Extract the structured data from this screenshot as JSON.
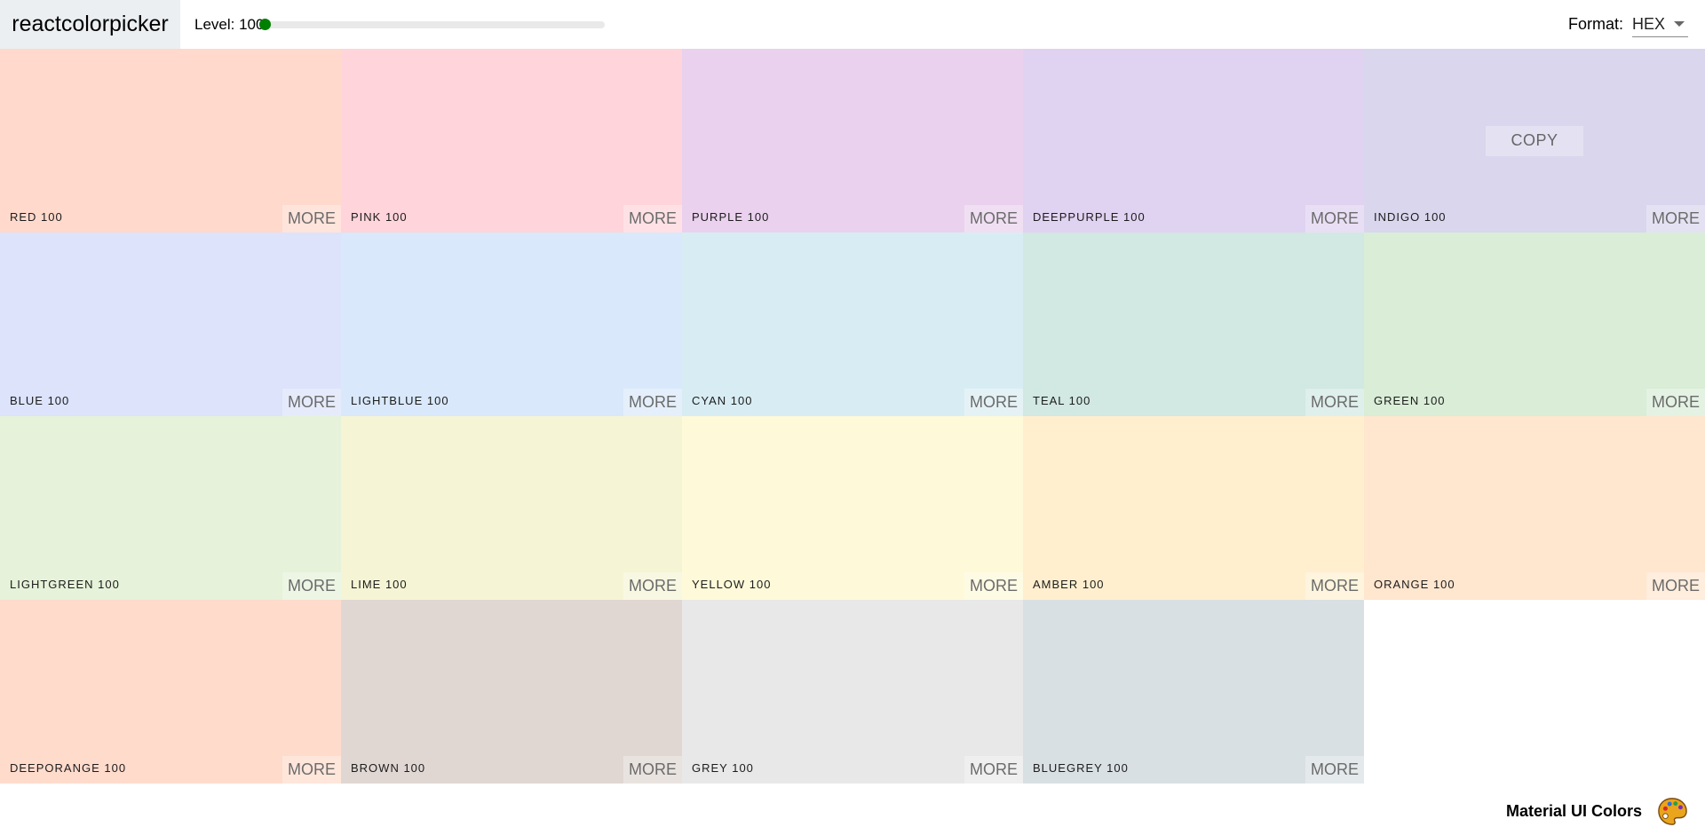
{
  "navbar": {
    "logo": "reactcolorpicker",
    "level_label": "Level: 100",
    "level_value": 100,
    "level_min": 100,
    "level_max": 900,
    "format_label": "Format:",
    "format_value": "HEX"
  },
  "palette": {
    "more_label": "MORE",
    "copy_label": "COPY",
    "colors": [
      {
        "name": "RED 100",
        "color": "#ffd9cc"
      },
      {
        "name": "PINK 100",
        "color": "#ffd4da"
      },
      {
        "name": "PURPLE 100",
        "color": "#ead1ee"
      },
      {
        "name": "DEEPPURPLE 100",
        "color": "#e0d2f1"
      },
      {
        "name": "INDIGO 100",
        "color": "#d9d6ed"
      },
      {
        "name": "BLUE 100",
        "color": "#dce3fb"
      },
      {
        "name": "LIGHTBLUE 100",
        "color": "#d9e8fa"
      },
      {
        "name": "CYAN 100",
        "color": "#d8edf3"
      },
      {
        "name": "TEAL 100",
        "color": "#d2e8e2"
      },
      {
        "name": "GREEN 100",
        "color": "#d9edd7"
      },
      {
        "name": "LIGHTGREEN 100",
        "color": "#e6f2d9"
      },
      {
        "name": "LIME 100",
        "color": "#f5f5d6"
      },
      {
        "name": "YELLOW 100",
        "color": "#fefad9"
      },
      {
        "name": "AMBER 100",
        "color": "#ffefcf"
      },
      {
        "name": "ORANGE 100",
        "color": "#ffe6cf"
      },
      {
        "name": "DEEPORANGE 100",
        "color": "#ffdbcc"
      },
      {
        "name": "BROWN 100",
        "color": "#e0d7d3"
      },
      {
        "name": "GREY 100",
        "color": "#e8e8e8"
      },
      {
        "name": "BLUEGREY 100",
        "color": "#d9e0e4"
      }
    ]
  },
  "footer": {
    "palette_name": "Material UI Colors",
    "emoji_icon": "artist-palette-icon"
  }
}
